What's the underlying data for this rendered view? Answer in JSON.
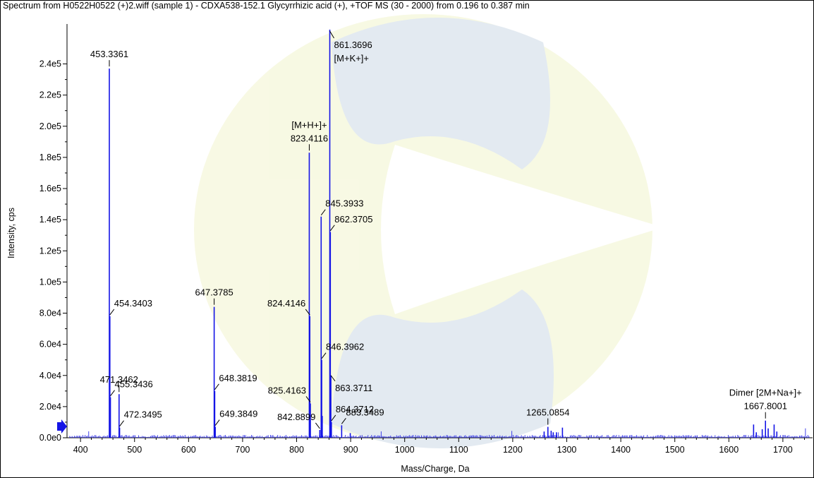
{
  "title": "Spectrum from H0522H0522 (+)2.wiff (sample 1) - CDXA538-152.1 Glycyrrhizic acid (+), +TOF MS (30 - 2000) from 0.196 to 0.387 min",
  "colors": {
    "peak": "#1414e6",
    "text": "#000000",
    "axis": "#000000"
  },
  "chart_data": {
    "type": "bar",
    "xlabel": "Mass/Charge, Da",
    "ylabel": "Intensity, cps",
    "xlim": [
      375,
      1755
    ],
    "ylim": [
      0,
      262000
    ],
    "x_ticks": [
      400,
      500,
      600,
      700,
      800,
      900,
      1000,
      1100,
      1200,
      1300,
      1400,
      1500,
      1600,
      1700
    ],
    "y_ticks": [
      {
        "v": 0,
        "label": "0.0e0"
      },
      {
        "v": 20000,
        "label": "2.0e4"
      },
      {
        "v": 40000,
        "label": "4.0e4"
      },
      {
        "v": 60000,
        "label": "6.0e4"
      },
      {
        "v": 80000,
        "label": "8.0e4"
      },
      {
        "v": 100000,
        "label": "1.0e5"
      },
      {
        "v": 120000,
        "label": "1.2e5"
      },
      {
        "v": 140000,
        "label": "1.4e5"
      },
      {
        "v": 160000,
        "label": "1.6e5"
      },
      {
        "v": 180000,
        "label": "1.8e5"
      },
      {
        "v": 200000,
        "label": "2.0e5"
      },
      {
        "v": 220000,
        "label": "2.2e5"
      },
      {
        "v": 240000,
        "label": "2.4e5"
      }
    ],
    "peaks": [
      {
        "mz": 453.3361,
        "intensity": 237000
      },
      {
        "mz": 454.3403,
        "intensity": 78000
      },
      {
        "mz": 455.3436,
        "intensity": 26000
      },
      {
        "mz": 471.3462,
        "intensity": 28000
      },
      {
        "mz": 472.3495,
        "intensity": 6500
      },
      {
        "mz": 647.3785,
        "intensity": 84000
      },
      {
        "mz": 648.3819,
        "intensity": 30000
      },
      {
        "mz": 649.3849,
        "intensity": 7000
      },
      {
        "mz": 823.4116,
        "intensity": 183000
      },
      {
        "mz": 824.4146,
        "intensity": 78000
      },
      {
        "mz": 825.4163,
        "intensity": 22000
      },
      {
        "mz": 842.8899,
        "intensity": 5000
      },
      {
        "mz": 845.3933,
        "intensity": 142000
      },
      {
        "mz": 846.3962,
        "intensity": 50000
      },
      {
        "mz": 847.4,
        "intensity": 14000
      },
      {
        "mz": 861.3696,
        "intensity": 262000
      },
      {
        "mz": 862.3705,
        "intensity": 132000
      },
      {
        "mz": 863.3711,
        "intensity": 40000
      },
      {
        "mz": 864.3712,
        "intensity": 10000
      },
      {
        "mz": 883.3489,
        "intensity": 8000
      },
      {
        "mz": 899.3,
        "intensity": 3000
      },
      {
        "mz": 1258.1,
        "intensity": 4000
      },
      {
        "mz": 1265.0854,
        "intensity": 7000
      },
      {
        "mz": 1271.1,
        "intensity": 4500
      },
      {
        "mz": 1275.0,
        "intensity": 3500
      },
      {
        "mz": 1281.0,
        "intensity": 3500
      },
      {
        "mz": 1292.0,
        "intensity": 6500
      },
      {
        "mz": 1645.8,
        "intensity": 8500
      },
      {
        "mz": 1650.8,
        "intensity": 3500
      },
      {
        "mz": 1661.8,
        "intensity": 5500
      },
      {
        "mz": 1667.8001,
        "intensity": 11000
      },
      {
        "mz": 1672.8,
        "intensity": 6000
      },
      {
        "mz": 1683.8,
        "intensity": 8500
      },
      {
        "mz": 1688.8,
        "intensity": 4000
      }
    ],
    "labels": [
      {
        "mz": 453.3361,
        "intensity": 237000,
        "lines": [
          "453.3361"
        ],
        "side": "above"
      },
      {
        "mz": 454.3403,
        "intensity": 78000,
        "lines": [
          "454.3403"
        ],
        "side": "right"
      },
      {
        "mz": 455.3436,
        "intensity": 26000,
        "lines": [
          "455.3436"
        ],
        "side": "right"
      },
      {
        "mz": 471.3462,
        "intensity": 28000,
        "lines": [
          "471.3462"
        ],
        "side": "above"
      },
      {
        "mz": 472.3495,
        "intensity": 6500,
        "lines": [
          "472.3495"
        ],
        "side": "right"
      },
      {
        "mz": 647.3785,
        "intensity": 84000,
        "lines": [
          "647.3785"
        ],
        "side": "above"
      },
      {
        "mz": 648.3819,
        "intensity": 30000,
        "lines": [
          "648.3819"
        ],
        "side": "right"
      },
      {
        "mz": 649.3849,
        "intensity": 7000,
        "lines": [
          "649.3849"
        ],
        "side": "right"
      },
      {
        "mz": 823.4116,
        "intensity": 183000,
        "lines": [
          "[M+H+]+",
          "823.4116"
        ],
        "side": "above"
      },
      {
        "mz": 824.4146,
        "intensity": 78000,
        "lines": [
          "824.4146"
        ],
        "side": "left"
      },
      {
        "mz": 825.4163,
        "intensity": 22000,
        "lines": [
          "825.4163"
        ],
        "side": "left"
      },
      {
        "mz": 842.8899,
        "intensity": 5000,
        "lines": [
          "842.8899"
        ],
        "side": "left"
      },
      {
        "mz": 845.3933,
        "intensity": 142000,
        "lines": [
          "845.3933"
        ],
        "side": "right"
      },
      {
        "mz": 846.3962,
        "intensity": 50000,
        "lines": [
          "846.3962"
        ],
        "side": "right"
      },
      {
        "mz": 861.3696,
        "intensity": 262000,
        "lines": [
          "861.3696",
          "[M+K+]+"
        ],
        "side": "right-top"
      },
      {
        "mz": 862.3705,
        "intensity": 132000,
        "lines": [
          "862.3705"
        ],
        "side": "right"
      },
      {
        "mz": 863.3711,
        "intensity": 40000,
        "lines": [
          "863.3711"
        ],
        "side": "right-down"
      },
      {
        "mz": 864.3712,
        "intensity": 10000,
        "lines": [
          "864.3712"
        ],
        "side": "right"
      },
      {
        "mz": 883.3489,
        "intensity": 8000,
        "lines": [
          "883.3489"
        ],
        "side": "right"
      },
      {
        "mz": 1265.0854,
        "intensity": 7000,
        "lines": [
          "1265.0854"
        ],
        "side": "above"
      },
      {
        "mz": 1667.8001,
        "intensity": 11000,
        "lines": [
          "Dimer [2M+Na+]+",
          "1667.8001"
        ],
        "side": "above"
      }
    ]
  }
}
